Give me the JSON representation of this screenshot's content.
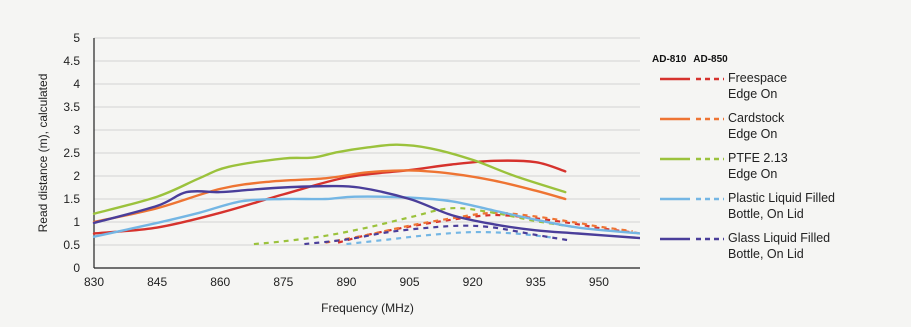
{
  "chart_data": {
    "type": "line",
    "xlabel": "Frequency (MHz)",
    "ylabel": "Read distance (m), calculated",
    "xlim": [
      830,
      960
    ],
    "ylim": [
      0,
      5
    ],
    "xticks": [
      "830",
      "845",
      "860",
      "875",
      "890",
      "905",
      "920",
      "935",
      "950"
    ],
    "yticks": [
      "0",
      "0.5",
      "1",
      "1.5",
      "2",
      "2.5",
      "3",
      "3.5",
      "4",
      "4.5",
      "5"
    ],
    "grid": "horizontal",
    "legend_headers": [
      "AD-810",
      "AD-850"
    ],
    "series": [
      {
        "name_lines": [
          "Freespace",
          "Edge On"
        ],
        "color": "#d6322d",
        "solid": {
          "x": [
            830,
            845,
            860,
            875,
            890,
            905,
            915,
            925,
            935,
            942
          ],
          "y": [
            0.75,
            0.88,
            1.2,
            1.6,
            1.97,
            2.13,
            2.25,
            2.33,
            2.3,
            2.1
          ]
        },
        "dashed": {
          "x": [
            888,
            895,
            905,
            915,
            925,
            935,
            945,
            950,
            960
          ],
          "y": [
            0.55,
            0.72,
            0.9,
            1.05,
            1.15,
            1.08,
            0.95,
            0.87,
            0.75
          ]
        }
      },
      {
        "name_lines": [
          "Cardstock",
          "Edge On"
        ],
        "color": "#ee7433",
        "solid": {
          "x": [
            830,
            845,
            860,
            872,
            885,
            895,
            905,
            915,
            925,
            935,
            942
          ],
          "y": [
            1.0,
            1.3,
            1.72,
            1.88,
            1.95,
            2.08,
            2.12,
            2.05,
            1.9,
            1.68,
            1.5
          ]
        },
        "dashed": {
          "x": [
            885,
            895,
            905,
            915,
            925,
            935,
            945,
            950,
            958
          ],
          "y": [
            0.55,
            0.72,
            0.92,
            1.08,
            1.2,
            1.12,
            0.98,
            0.9,
            0.8
          ]
        }
      },
      {
        "name_lines": [
          "PTFE 2.13",
          "Edge On"
        ],
        "color": "#9bc23c",
        "solid": {
          "x": [
            830,
            845,
            855,
            862,
            875,
            882,
            888,
            895,
            902,
            910,
            920,
            930,
            942
          ],
          "y": [
            1.18,
            1.55,
            1.95,
            2.2,
            2.38,
            2.4,
            2.52,
            2.62,
            2.68,
            2.6,
            2.35,
            2.0,
            1.65
          ]
        },
        "dashed": {
          "x": [
            868,
            875,
            885,
            895,
            905,
            915,
            925,
            935,
            945
          ],
          "y": [
            0.52,
            0.58,
            0.7,
            0.88,
            1.1,
            1.3,
            1.2,
            1.02,
            0.88
          ]
        }
      },
      {
        "name_lines": [
          "Plastic Liquid Filled",
          "Bottle, On Lid"
        ],
        "color": "#74b6e4",
        "solid": {
          "x": [
            830,
            845,
            855,
            865,
            875,
            885,
            892,
            905,
            915,
            925,
            935,
            945,
            960
          ],
          "y": [
            0.68,
            0.98,
            1.2,
            1.45,
            1.5,
            1.5,
            1.55,
            1.53,
            1.45,
            1.25,
            1.05,
            0.88,
            0.75
          ]
        },
        "dashed": {
          "x": [
            890,
            900,
            910,
            920,
            930,
            940
          ],
          "y": [
            0.52,
            0.62,
            0.72,
            0.78,
            0.75,
            0.65
          ]
        }
      },
      {
        "name_lines": [
          "Glass Liquid Filled",
          "Bottle, On Lid"
        ],
        "color": "#4a3e9a",
        "solid": {
          "x": [
            830,
            845,
            852,
            860,
            867,
            875,
            885,
            893,
            905,
            915,
            925,
            935,
            945,
            960
          ],
          "y": [
            0.98,
            1.35,
            1.65,
            1.65,
            1.7,
            1.75,
            1.78,
            1.75,
            1.5,
            1.15,
            0.95,
            0.82,
            0.75,
            0.65
          ]
        },
        "dashed": {
          "x": [
            880,
            890,
            900,
            910,
            918,
            925,
            935,
            943
          ],
          "y": [
            0.52,
            0.62,
            0.78,
            0.88,
            0.92,
            0.88,
            0.72,
            0.6
          ]
        }
      }
    ]
  }
}
